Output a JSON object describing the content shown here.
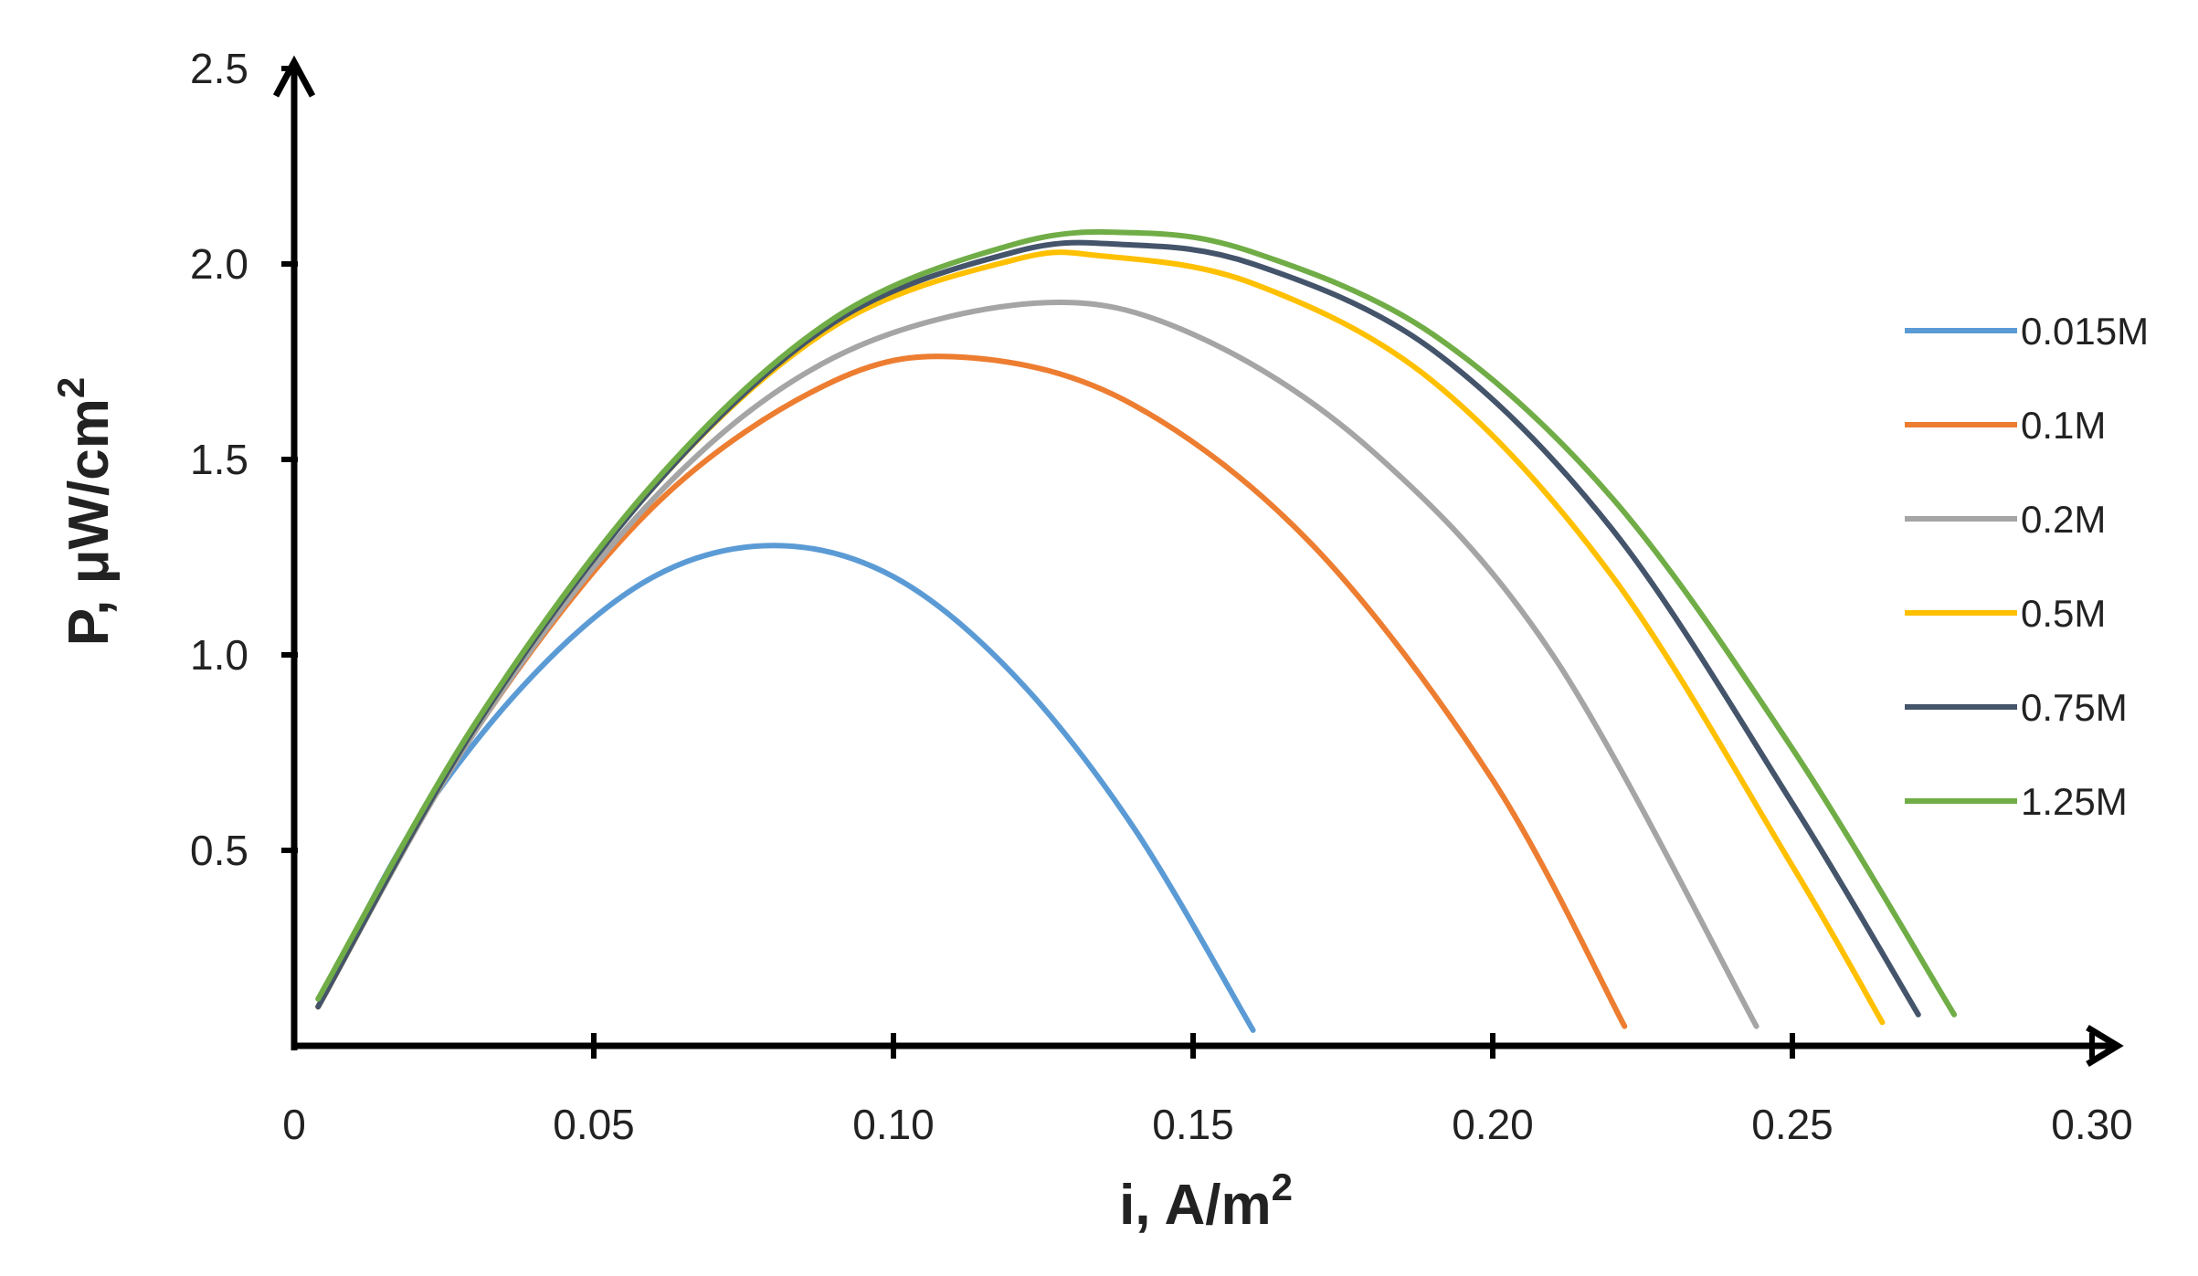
{
  "chart_data": {
    "type": "line",
    "title": "",
    "xlabel": "i, A/m",
    "xlabel_sup": "2",
    "ylabel": "P, μW/cm",
    "ylabel_sup": "2",
    "xlim": [
      0,
      0.3
    ],
    "ylim": [
      0,
      2.5
    ],
    "x_ticks": [
      "0",
      "0.05",
      "0.10",
      "0.15",
      "0.20",
      "0.25",
      "0.30"
    ],
    "y_ticks": [
      "0.5",
      "1.0",
      "1.5",
      "2.0",
      "2.5"
    ],
    "grid": false,
    "legend_position": "right",
    "series": [
      {
        "name": "0.015M",
        "color": "#5B9BD5",
        "x": [
          0.004,
          0.02,
          0.04,
          0.06,
          0.08,
          0.1,
          0.12,
          0.14,
          0.16
        ],
        "y": [
          0.1,
          0.56,
          0.95,
          1.2,
          1.28,
          1.2,
          0.95,
          0.56,
          0.04
        ]
      },
      {
        "name": "0.1M",
        "color": "#ED7D31",
        "x": [
          0.004,
          0.03,
          0.06,
          0.09,
          0.113,
          0.14,
          0.17,
          0.2,
          0.222
        ],
        "y": [
          0.1,
          0.8,
          1.38,
          1.7,
          1.76,
          1.64,
          1.28,
          0.68,
          0.05
        ]
      },
      {
        "name": "0.2M",
        "color": "#A5A5A5",
        "x": [
          0.004,
          0.03,
          0.06,
          0.09,
          0.124,
          0.15,
          0.18,
          0.21,
          0.244
        ],
        "y": [
          0.1,
          0.8,
          1.4,
          1.76,
          1.9,
          1.82,
          1.52,
          1.0,
          0.05
        ]
      },
      {
        "name": "0.5M",
        "color": "#FFC000",
        "x": [
          0.004,
          0.03,
          0.06,
          0.09,
          0.12,
          0.135,
          0.16,
          0.19,
          0.22,
          0.25,
          0.265
        ],
        "y": [
          0.1,
          0.81,
          1.43,
          1.84,
          2.01,
          2.02,
          1.95,
          1.7,
          1.2,
          0.46,
          0.06
        ]
      },
      {
        "name": "0.75M",
        "color": "#44546A",
        "x": [
          0.004,
          0.03,
          0.06,
          0.09,
          0.12,
          0.138,
          0.16,
          0.19,
          0.22,
          0.25,
          0.271
        ],
        "y": [
          0.1,
          0.81,
          1.43,
          1.85,
          2.03,
          2.05,
          2.0,
          1.78,
          1.32,
          0.62,
          0.08
        ]
      },
      {
        "name": "1.25M",
        "color": "#70AD47",
        "x": [
          0.004,
          0.03,
          0.06,
          0.09,
          0.12,
          0.14,
          0.16,
          0.19,
          0.22,
          0.25,
          0.277
        ],
        "y": [
          0.12,
          0.82,
          1.44,
          1.86,
          2.05,
          2.08,
          2.03,
          1.82,
          1.4,
          0.76,
          0.08
        ]
      }
    ]
  }
}
